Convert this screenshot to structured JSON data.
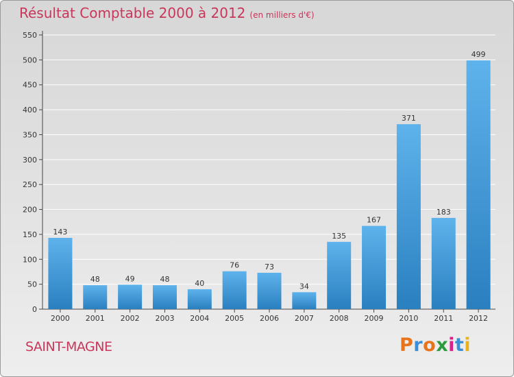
{
  "page": {
    "title": "Résultat Comptable 2000 à 2012",
    "subtitle": "(en milliers d'€)",
    "commune": "SAINT-MAGNE",
    "logo": {
      "text": "Proxiti",
      "letter_colors": [
        "#e8731a",
        "#3a8fd6",
        "#e8731a",
        "#2e9a3e",
        "#d8228a",
        "#3a8fd6",
        "#e8b21a"
      ]
    },
    "colors": {
      "title": "#c9365a",
      "bar_top": "#5eb3ec",
      "bar_bottom": "#2a7fbf",
      "gridline": "#ffffff"
    }
  },
  "chart_data": {
    "type": "bar",
    "title": "Résultat Comptable 2000 à 2012",
    "subtitle": "(en milliers d'€)",
    "categories": [
      "2000",
      "2001",
      "2002",
      "2003",
      "2004",
      "2005",
      "2006",
      "2007",
      "2008",
      "2009",
      "2010",
      "2011",
      "2012"
    ],
    "values": [
      143,
      48,
      49,
      48,
      40,
      76,
      73,
      34,
      135,
      167,
      371,
      183,
      499
    ],
    "ylim": [
      0,
      550
    ],
    "yticks": [
      0,
      50,
      100,
      150,
      200,
      250,
      300,
      350,
      400,
      450,
      500,
      550
    ],
    "grid": true,
    "data_labels": true,
    "legend": "none"
  }
}
